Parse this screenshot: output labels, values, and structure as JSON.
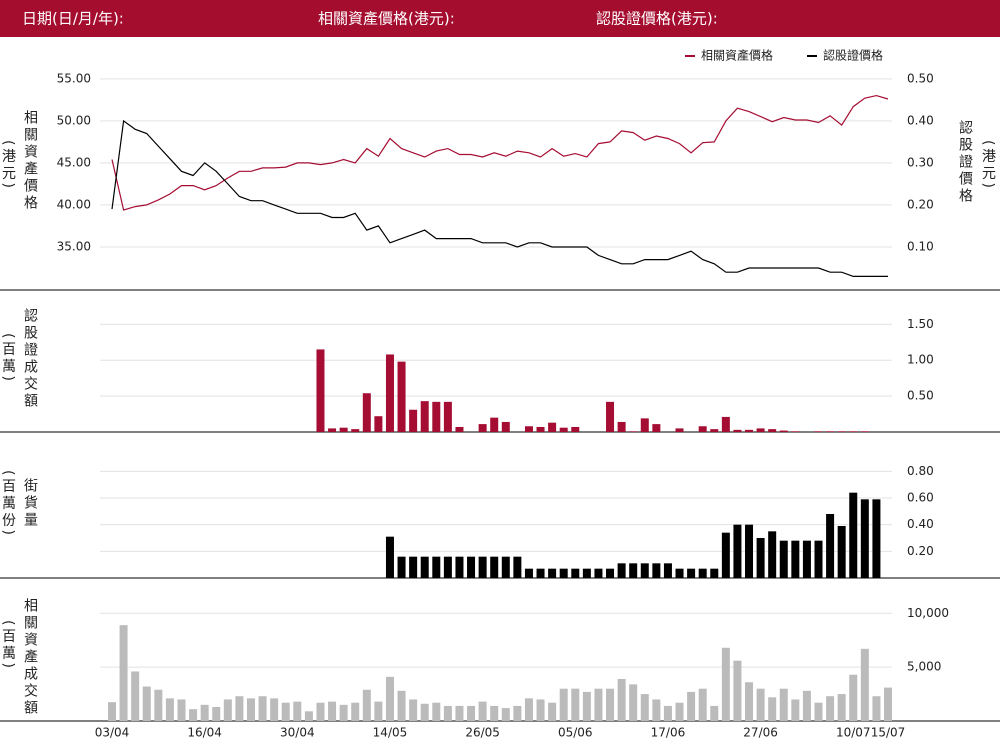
{
  "header": {
    "labels": [
      "日期(日/月/年):",
      "相關資產價格(港元):",
      "認股證價格(港元):"
    ]
  },
  "chart_data": [
    {
      "type": "line",
      "ylabel": "相關資產價格",
      "yunit": "(港元)",
      "y2label": "認股證價格",
      "y2unit": "(港元)",
      "legend": "top-right",
      "ylim": [
        30,
        57
      ],
      "yticks": [
        {
          "value": 35,
          "label": "35.00"
        },
        {
          "value": 40,
          "label": "40.00"
        },
        {
          "value": 45,
          "label": "45.00"
        },
        {
          "value": 50,
          "label": "50.00"
        },
        {
          "value": 55,
          "label": "55.00"
        }
      ],
      "y2lim": [
        0,
        0.54
      ],
      "y2ticks": [
        {
          "value": 0.1,
          "label": "0.10"
        },
        {
          "value": 0.2,
          "label": "0.20"
        },
        {
          "value": 0.3,
          "label": "0.30"
        },
        {
          "value": 0.4,
          "label": "0.40"
        },
        {
          "value": 0.5,
          "label": "0.50"
        }
      ],
      "grid": true,
      "series": [
        {
          "name": "相關資產價格",
          "color": "#a50d32",
          "values": [
            45.4,
            39.4,
            39.8,
            40.0,
            40.6,
            41.3,
            42.3,
            42.3,
            41.8,
            42.3,
            43.2,
            44.0,
            44.0,
            44.4,
            44.4,
            44.5,
            45.0,
            45.0,
            44.8,
            45.0,
            45.4,
            45.0,
            46.7,
            45.8,
            47.9,
            46.7,
            46.2,
            45.7,
            46.4,
            46.7,
            46.0,
            46.0,
            45.7,
            46.2,
            45.8,
            46.4,
            46.2,
            45.7,
            46.7,
            45.8,
            46.1,
            45.7,
            47.3,
            47.5,
            48.8,
            48.6,
            47.7,
            48.2,
            47.9,
            47.3,
            46.2,
            47.4,
            47.5,
            50.0,
            51.5,
            51.1,
            50.5,
            49.9,
            50.4,
            50.1,
            50.1,
            49.8,
            50.6,
            49.5,
            51.7,
            52.7,
            53.0,
            52.6
          ]
        },
        {
          "name": "認股證價格",
          "color": "#000000",
          "axis": "y2",
          "values": [
            0.19,
            0.4,
            0.38,
            0.37,
            0.34,
            0.31,
            0.28,
            0.27,
            0.3,
            0.28,
            0.25,
            0.22,
            0.21,
            0.21,
            0.2,
            0.19,
            0.18,
            0.18,
            0.18,
            0.17,
            0.17,
            0.18,
            0.14,
            0.15,
            0.11,
            0.12,
            0.13,
            0.14,
            0.12,
            0.12,
            0.12,
            0.12,
            0.11,
            0.11,
            0.11,
            0.1,
            0.11,
            0.11,
            0.1,
            0.1,
            0.1,
            0.1,
            0.08,
            0.07,
            0.06,
            0.06,
            0.07,
            0.07,
            0.07,
            0.08,
            0.09,
            0.07,
            0.06,
            0.04,
            0.04,
            0.05,
            0.05,
            0.05,
            0.05,
            0.05,
            0.05,
            0.05,
            0.04,
            0.04,
            0.03,
            0.03,
            0.03,
            0.03
          ]
        }
      ]
    },
    {
      "type": "bar",
      "ylabel": "認股證成交額",
      "yunit": "(百萬)",
      "color": "#a50d32",
      "ylim": [
        0,
        1.95
      ],
      "yticks": [
        {
          "value": 0.5,
          "label": "0.50"
        },
        {
          "value": 1,
          "label": "1.00"
        },
        {
          "value": 1.5,
          "label": "1.50"
        }
      ],
      "grid": true,
      "values": [
        0,
        0,
        0,
        0,
        0,
        0,
        0,
        0,
        0,
        0,
        0,
        0,
        0,
        0,
        0,
        0,
        0,
        0,
        1.15,
        0.05,
        0.06,
        0.04,
        0.54,
        0.22,
        1.08,
        0.98,
        0.31,
        0.43,
        0.42,
        0.42,
        0.07,
        0,
        0.11,
        0.2,
        0.14,
        0,
        0.08,
        0.07,
        0.13,
        0.06,
        0.07,
        0,
        0,
        0.42,
        0.14,
        0.01,
        0.19,
        0.11,
        0,
        0.05,
        0,
        0.08,
        0.04,
        0.21,
        0.03,
        0.03,
        0.05,
        0.04,
        0.02,
        0.01,
        0,
        0.01,
        0.01,
        0.01,
        0.01,
        0.01,
        0,
        0
      ]
    },
    {
      "type": "bar",
      "ylabel": "街貨量",
      "yunit": "(百萬份)",
      "color": "#000000",
      "ylim": [
        0,
        1.05
      ],
      "yticks": [
        {
          "value": 0.2,
          "label": "0.20"
        },
        {
          "value": 0.4,
          "label": "0.40"
        },
        {
          "value": 0.6,
          "label": "0.60"
        },
        {
          "value": 0.8,
          "label": "0.80"
        }
      ],
      "grid": true,
      "values": [
        0,
        0,
        0,
        0,
        0,
        0,
        0,
        0,
        0,
        0,
        0,
        0,
        0,
        0,
        0,
        0,
        0,
        0,
        0,
        0,
        0,
        0,
        0,
        0,
        0.31,
        0.16,
        0.16,
        0.16,
        0.16,
        0.16,
        0.16,
        0.16,
        0.16,
        0.16,
        0.16,
        0.16,
        0.07,
        0.07,
        0.07,
        0.07,
        0.07,
        0.07,
        0.07,
        0.07,
        0.11,
        0.11,
        0.11,
        0.11,
        0.11,
        0.07,
        0.07,
        0.07,
        0.07,
        0.34,
        0.4,
        0.4,
        0.3,
        0.35,
        0.28,
        0.28,
        0.28,
        0.28,
        0.48,
        0.39,
        0.64,
        0.59,
        0.59,
        0
      ]
    },
    {
      "type": "bar",
      "ylabel": "相關資產成交額",
      "yunit": "(百萬)",
      "color": "#bbbbbb",
      "ylim": [
        0,
        13000
      ],
      "yticks": [
        {
          "value": 5000,
          "label": "5,000"
        },
        {
          "value": 10000,
          "label": "10,000"
        }
      ],
      "grid": true,
      "categories": [
        "03/04",
        null,
        null,
        null,
        null,
        null,
        null,
        null,
        "16/04",
        null,
        null,
        null,
        null,
        null,
        null,
        null,
        "30/04",
        null,
        null,
        null,
        null,
        null,
        null,
        null,
        "14/05",
        null,
        null,
        null,
        null,
        null,
        null,
        null,
        "26/05",
        null,
        null,
        null,
        null,
        null,
        null,
        null,
        "05/06",
        null,
        null,
        null,
        null,
        null,
        null,
        null,
        "17/06",
        null,
        null,
        null,
        null,
        null,
        null,
        null,
        "27/06",
        null,
        null,
        null,
        null,
        null,
        null,
        null,
        "10/07",
        null,
        null,
        "15/07"
      ],
      "values": [
        1750,
        8900,
        4600,
        3200,
        2900,
        2100,
        2000,
        1100,
        1500,
        1300,
        2000,
        2300,
        2100,
        2300,
        2100,
        1700,
        1800,
        900,
        1700,
        1800,
        1500,
        1700,
        2900,
        1800,
        4100,
        2800,
        2000,
        1600,
        1700,
        1400,
        1400,
        1400,
        1800,
        1400,
        1200,
        1400,
        2100,
        2000,
        1700,
        3000,
        3000,
        2700,
        3000,
        3000,
        3900,
        3400,
        2500,
        2000,
        1400,
        1700,
        2700,
        3000,
        1400,
        6800,
        5600,
        3600,
        3000,
        2200,
        3000,
        2000,
        2800,
        1700,
        2300,
        2500,
        4300,
        6700,
        2300,
        3100
      ]
    }
  ]
}
